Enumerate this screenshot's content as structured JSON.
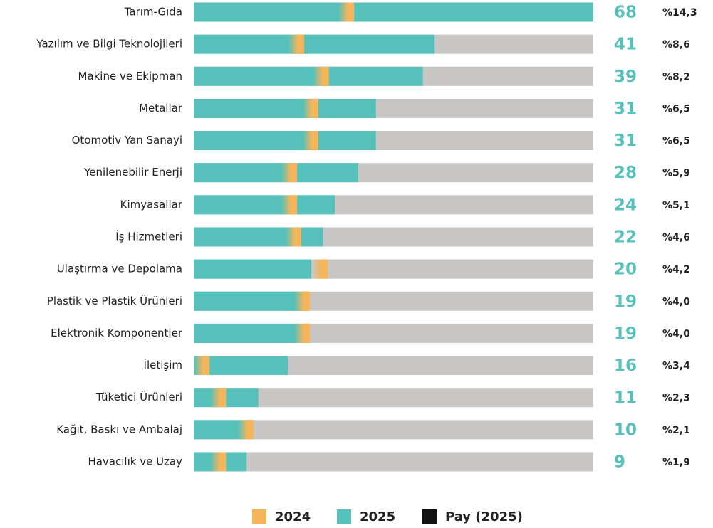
{
  "chart_data": {
    "type": "bar",
    "orientation": "horizontal",
    "categories": [
      "Tarım-Gıda",
      "Yazılım ve Bilgi Teknolojileri",
      "Makine ve Ekipman",
      "Metallar",
      "Otomotiv Yan Sanayi",
      "Yenilenebilir Enerji",
      "Kimyasallar",
      "İş Hizmetleri",
      "Ulaştırma ve Depolama",
      "Plastik ve Plastik Ürünleri",
      "Elektronik Komponentler",
      "İletişim",
      "Tüketici Ürünleri",
      "Kağıt, Baskı ve Ambalaj",
      "Havacılık ve Uzay"
    ],
    "series": [
      {
        "name": "2024",
        "color": "#f5b55a",
        "values": [
          27.3,
          18.8,
          23.0,
          21.2,
          21.2,
          17.6,
          17.6,
          18.3,
          22.8,
          19.8,
          19.8,
          2.7,
          5.5,
          10.2,
          5.5
        ]
      },
      {
        "name": "2025",
        "color": "#56c1bb",
        "values": [
          68,
          41,
          39,
          31,
          31,
          28,
          24,
          22,
          20,
          19,
          19,
          16,
          11,
          10,
          9
        ]
      },
      {
        "name": "Pay (2025)",
        "color": "#111111",
        "values": [
          14.3,
          8.6,
          8.2,
          6.5,
          6.5,
          5.9,
          5.1,
          4.6,
          4.2,
          4.0,
          4.0,
          3.4,
          2.3,
          2.1,
          1.9
        ],
        "value_labels": [
          "%14,3",
          "%8,6",
          "%8,2",
          "%6,5",
          "%6,5",
          "%5,9",
          "%5,1",
          "%4,6",
          "%4,2",
          "%4,0",
          "%4,0",
          "%3,4",
          "%2,3",
          "%2,1",
          "%1,9"
        ]
      }
    ],
    "xlim": [
      0,
      68
    ],
    "track_color": "#c8c6c5",
    "legend": "bottom"
  }
}
